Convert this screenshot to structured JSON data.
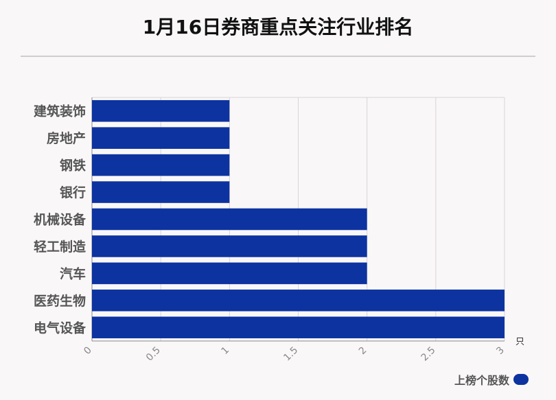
{
  "title": "1月16日券商重点关注行业排名",
  "colors": {
    "bar": "#0c33a0",
    "grid": "#d8d5d6",
    "axis": "#888888",
    "label": "#555555"
  },
  "chart_data": {
    "type": "bar",
    "orientation": "horizontal",
    "title": "1月16日券商重点关注行业排名",
    "categories": [
      "建筑装饰",
      "房地产",
      "钢铁",
      "银行",
      "机械设备",
      "轻工制造",
      "汽车",
      "医药生物",
      "电气设备"
    ],
    "series": [
      {
        "name": "上榜个股数",
        "values": [
          1,
          1,
          1,
          1,
          2,
          2,
          2,
          3,
          3
        ]
      }
    ],
    "xticks": [
      "0",
      "0.5",
      "1",
      "1.5",
      "2",
      "2.5",
      "3"
    ],
    "xlim": [
      0,
      3
    ],
    "xunit": "只",
    "grid": true,
    "legend_position": "bottom-right"
  }
}
